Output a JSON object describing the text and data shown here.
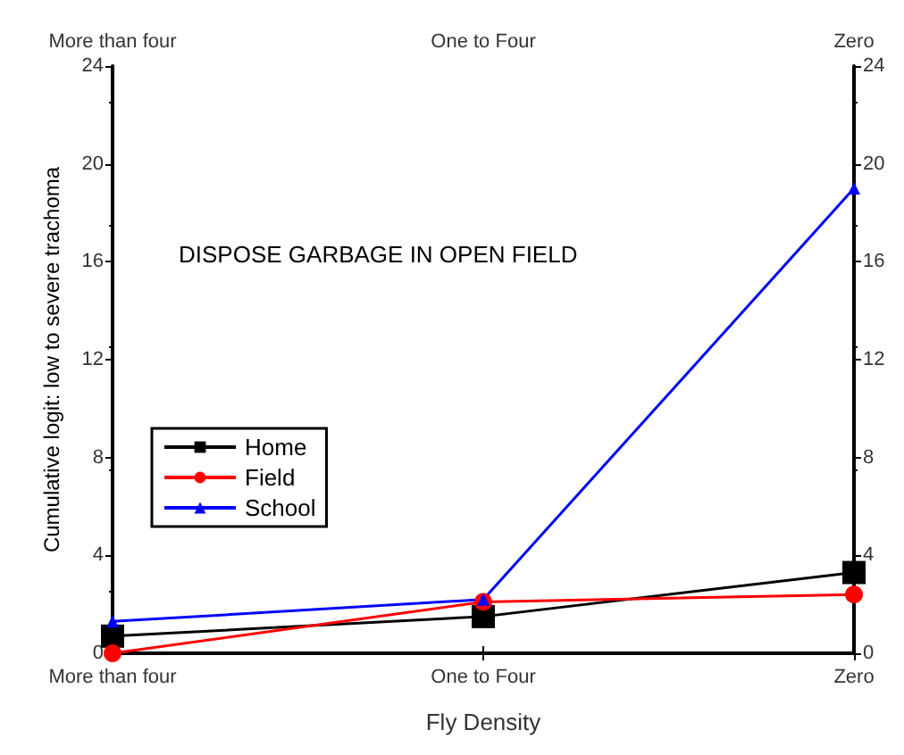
{
  "chart_data": {
    "type": "line",
    "xlabel": "Fly Density",
    "ylabel": "Cumulative logit: low to severe trachoma",
    "annotations": [
      "DISPOSE GARBAGE IN OPEN FIELD"
    ],
    "categories": [
      "More than four",
      "One to Four",
      "Zero"
    ],
    "series": [
      {
        "name": "Home",
        "color": "#000000",
        "marker": "square",
        "values": [
          0.7,
          1.5,
          3.3
        ]
      },
      {
        "name": "Field",
        "color": "#ff0000",
        "marker": "circle",
        "values": [
          0,
          2.1,
          2.4
        ]
      },
      {
        "name": "School",
        "color": "#0000ff",
        "marker": "triangle",
        "values": [
          1.3,
          2.2,
          19
        ]
      }
    ],
    "ylim": [
      0,
      24
    ],
    "yticks": [
      0,
      4,
      8,
      12,
      16,
      20,
      24
    ],
    "y2lim": [
      0,
      24
    ],
    "y2ticks": [
      0,
      4,
      8,
      12,
      16,
      20,
      24
    ],
    "grid": false,
    "legend": "left",
    "line_style": "solid"
  }
}
